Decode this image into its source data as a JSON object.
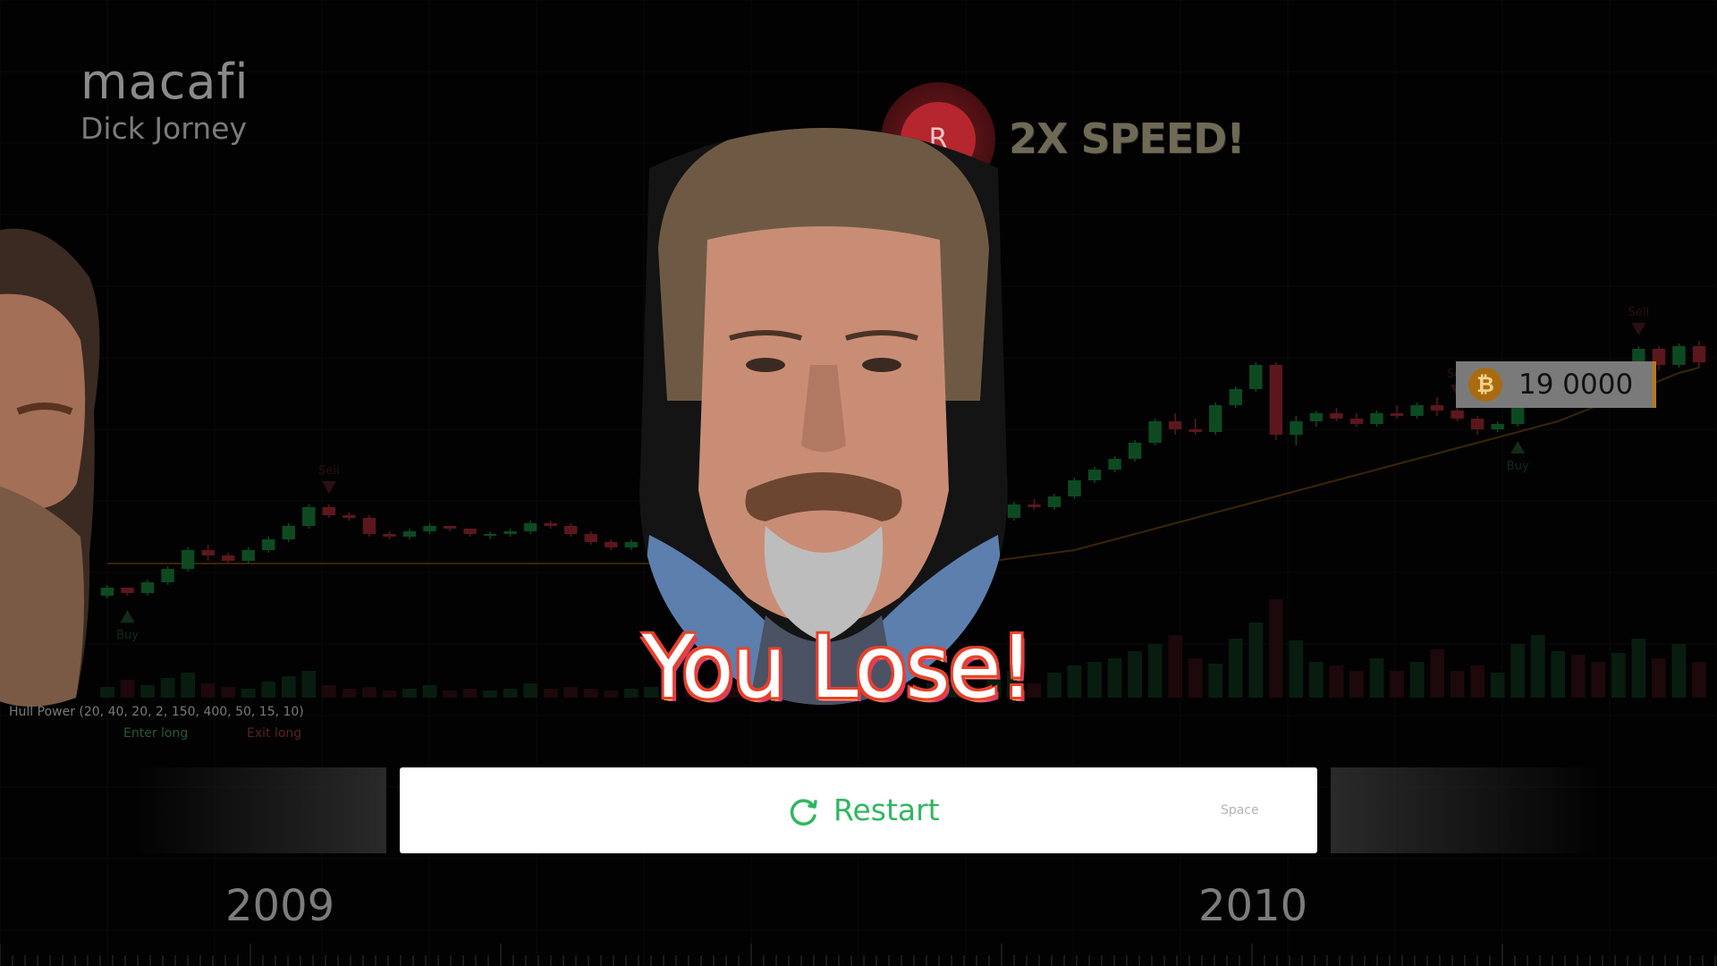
{
  "header": {
    "ticker": "macafi",
    "subtitle": "Dick Jorney"
  },
  "speed_badge": {
    "key": "R",
    "label": "2X SPEED!"
  },
  "price_tag": {
    "icon": "bitcoin-icon",
    "value": "19 0000",
    "accent": "#b77a17"
  },
  "overlay": {
    "result_text": "You  Lose!"
  },
  "indicator": {
    "label": "Hull Power (20, 40, 20, 2, 150, 400, 50, 15, 10)",
    "enter_label": "Enter long",
    "exit_label": "Exit long"
  },
  "markers": {
    "sell": "Sell",
    "buy": "Buy"
  },
  "restart": {
    "label": "Restart",
    "shortcut": "Space",
    "icon": "refresh-icon",
    "color": "#2fb760"
  },
  "timeline": {
    "years": [
      "2009",
      "2010"
    ]
  },
  "chart_data": {
    "type": "candlestick",
    "candles": [
      [
        118,
        122,
        117,
        121
      ],
      [
        121,
        121,
        118,
        119
      ],
      [
        119,
        124,
        118,
        123
      ],
      [
        123,
        129,
        122,
        128
      ],
      [
        128,
        136,
        127,
        135
      ],
      [
        135,
        137,
        131,
        133
      ],
      [
        133,
        134,
        130,
        131
      ],
      [
        131,
        136,
        130,
        135
      ],
      [
        135,
        140,
        134,
        139
      ],
      [
        139,
        145,
        138,
        144
      ],
      [
        144,
        152,
        143,
        151
      ],
      [
        151,
        152,
        147,
        148
      ],
      [
        148,
        149,
        146,
        147
      ],
      [
        147,
        148,
        140,
        141
      ],
      [
        141,
        142,
        139,
        140
      ],
      [
        140,
        143,
        139,
        142
      ],
      [
        142,
        145,
        141,
        144
      ],
      [
        144,
        144,
        142,
        143
      ],
      [
        143,
        143,
        140,
        141
      ],
      [
        141,
        142,
        139,
        141
      ],
      [
        141,
        143,
        140,
        142
      ],
      [
        142,
        146,
        141,
        145
      ],
      [
        145,
        146,
        143,
        144
      ],
      [
        144,
        145,
        140,
        141
      ],
      [
        141,
        142,
        137,
        138
      ],
      [
        138,
        139,
        135,
        136
      ],
      [
        136,
        139,
        135,
        138
      ],
      [
        138,
        140,
        137,
        139
      ],
      [
        139,
        140,
        137,
        138
      ],
      [
        138,
        139,
        136,
        137
      ],
      [
        137,
        141,
        136,
        140
      ],
      [
        140,
        141,
        138,
        139
      ],
      [
        139,
        140,
        137,
        138
      ],
      [
        138,
        141,
        137,
        140
      ],
      [
        140,
        142,
        139,
        141
      ],
      [
        141,
        141,
        138,
        139
      ],
      [
        139,
        140,
        136,
        137
      ],
      [
        137,
        141,
        136,
        140
      ],
      [
        140,
        143,
        139,
        142
      ],
      [
        142,
        143,
        139,
        140
      ],
      [
        140,
        141,
        136,
        137
      ],
      [
        137,
        142,
        136,
        141
      ],
      [
        141,
        144,
        140,
        143
      ],
      [
        143,
        144,
        141,
        142
      ],
      [
        142,
        148,
        141,
        147
      ],
      [
        147,
        153,
        146,
        152
      ],
      [
        152,
        154,
        150,
        151
      ],
      [
        151,
        156,
        150,
        155
      ],
      [
        155,
        162,
        154,
        161
      ],
      [
        161,
        166,
        160,
        165
      ],
      [
        165,
        170,
        164,
        169
      ],
      [
        169,
        176,
        168,
        175
      ],
      [
        175,
        184,
        174,
        183
      ],
      [
        183,
        186,
        178,
        180
      ],
      [
        180,
        184,
        178,
        179
      ],
      [
        179,
        190,
        178,
        189
      ],
      [
        189,
        196,
        188,
        195
      ],
      [
        195,
        205,
        194,
        204
      ],
      [
        204,
        205,
        176,
        178
      ],
      [
        178,
        185,
        174,
        183
      ],
      [
        183,
        187,
        181,
        186
      ],
      [
        186,
        188,
        183,
        184
      ],
      [
        184,
        186,
        181,
        182
      ],
      [
        182,
        187,
        181,
        186
      ],
      [
        186,
        189,
        184,
        185
      ],
      [
        185,
        190,
        184,
        189
      ],
      [
        189,
        192,
        185,
        187
      ],
      [
        187,
        188,
        183,
        184
      ],
      [
        184,
        185,
        178,
        180
      ],
      [
        180,
        183,
        179,
        182
      ],
      [
        182,
        193,
        181,
        192
      ],
      [
        192,
        198,
        191,
        197
      ],
      [
        197,
        201,
        196,
        200
      ],
      [
        200,
        204,
        196,
        198
      ],
      [
        198,
        199,
        194,
        196
      ],
      [
        196,
        205,
        195,
        204
      ],
      [
        204,
        211,
        203,
        210
      ],
      [
        210,
        211,
        202,
        204
      ],
      [
        204,
        212,
        203,
        211
      ],
      [
        211,
        213,
        203,
        205
      ]
    ],
    "volume": [
      12,
      20,
      14,
      22,
      28,
      16,
      12,
      10,
      18,
      24,
      30,
      14,
      10,
      12,
      8,
      10,
      14,
      8,
      10,
      8,
      10,
      16,
      10,
      12,
      10,
      8,
      10,
      12,
      8,
      8,
      14,
      10,
      8,
      10,
      12,
      10,
      8,
      12,
      14,
      10,
      10,
      16,
      20,
      12,
      24,
      30,
      16,
      28,
      36,
      40,
      44,
      52,
      60,
      70,
      44,
      38,
      66,
      84,
      110,
      64,
      40,
      36,
      30,
      44,
      30,
      40,
      54,
      30,
      36,
      28,
      60,
      70,
      52,
      48,
      40,
      50,
      66,
      44,
      60,
      40
    ],
    "moving_average": [
      130,
      130,
      130,
      130,
      130,
      130,
      130,
      130,
      130,
      130,
      130,
      130,
      130,
      130,
      130,
      130,
      130,
      130,
      130,
      130,
      130,
      130,
      130,
      130,
      130,
      130,
      130,
      130,
      130,
      130,
      130,
      130,
      130,
      130,
      130,
      130,
      130,
      130,
      130,
      130,
      130,
      130,
      130,
      130,
      131,
      132,
      133,
      134,
      135,
      137,
      139,
      141,
      143,
      145,
      147,
      149,
      151,
      153,
      155,
      157,
      159,
      161,
      163,
      165,
      167,
      169,
      171,
      173,
      175,
      177,
      179,
      181,
      183,
      186,
      189,
      192,
      195,
      198,
      201,
      203
    ],
    "signals": [
      {
        "type": "sell",
        "index": 11
      },
      {
        "type": "buy",
        "index": 1
      },
      {
        "type": "buy",
        "index": 33
      },
      {
        "type": "sell",
        "index": 67
      },
      {
        "type": "buy",
        "index": 70
      },
      {
        "type": "sell",
        "index": 76
      }
    ],
    "x_labels": [
      "2009",
      "2010"
    ]
  }
}
